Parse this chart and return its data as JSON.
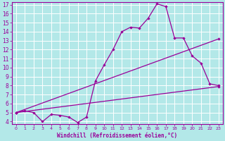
{
  "title": "",
  "xlabel": "Windchill (Refroidissement éolien,°C)",
  "ylabel": "",
  "bg_color": "#b3e8e8",
  "line_color": "#990099",
  "grid_color": "#ffffff",
  "xlim": [
    -0.5,
    23.5
  ],
  "ylim": [
    3.7,
    17.3
  ],
  "xticks": [
    0,
    1,
    2,
    3,
    4,
    5,
    6,
    7,
    8,
    9,
    10,
    11,
    12,
    13,
    14,
    15,
    16,
    17,
    18,
    19,
    20,
    21,
    22,
    23
  ],
  "yticks": [
    4,
    5,
    6,
    7,
    8,
    9,
    10,
    11,
    12,
    13,
    14,
    15,
    16,
    17
  ],
  "line1_x": [
    0,
    1,
    2,
    3,
    4,
    5,
    6,
    7,
    8,
    9,
    10,
    11,
    12,
    13,
    14,
    15,
    16,
    17,
    18,
    19,
    20,
    21,
    22,
    23
  ],
  "line1_y": [
    5.0,
    5.2,
    5.0,
    4.0,
    4.8,
    4.7,
    4.5,
    3.9,
    4.5,
    8.5,
    10.3,
    12.0,
    14.0,
    14.5,
    14.4,
    15.5,
    17.1,
    16.8,
    13.3,
    13.3,
    11.3,
    10.5,
    8.2,
    8.0
  ],
  "line2_x": [
    0,
    23
  ],
  "line2_y": [
    5.0,
    7.9
  ],
  "line3_x": [
    0,
    23
  ],
  "line3_y": [
    5.0,
    13.2
  ]
}
